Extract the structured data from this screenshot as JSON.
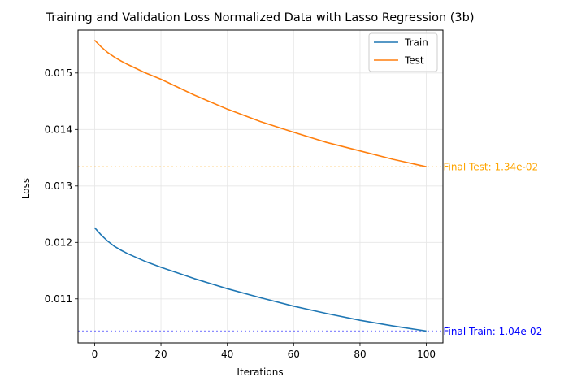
{
  "chart_data": {
    "type": "line",
    "title": "Training and Validation Loss Normalized Data with Lasso Regression (3b)",
    "xlabel": "Iterations",
    "ylabel": "Loss",
    "xlim": [
      -5,
      105
    ],
    "ylim": [
      0.01022,
      0.01576
    ],
    "xticks": [
      0,
      20,
      40,
      60,
      80,
      100
    ],
    "xtick_labels": [
      "0",
      "20",
      "40",
      "60",
      "80",
      "100"
    ],
    "yticks": [
      0.011,
      0.012,
      0.013,
      0.014,
      0.015
    ],
    "ytick_labels": [
      "0.011",
      "0.012",
      "0.013",
      "0.014",
      "0.015"
    ],
    "grid": true,
    "legend_position": "upper right",
    "series": [
      {
        "name": "Train",
        "color": "#1f77b4",
        "x": [
          0,
          2,
          4,
          6,
          8,
          10,
          15,
          20,
          30,
          40,
          50,
          60,
          70,
          80,
          90,
          100
        ],
        "y": [
          0.01226,
          0.01213,
          0.01202,
          0.01193,
          0.01186,
          0.0118,
          0.01167,
          0.01156,
          0.01136,
          0.01118,
          0.01102,
          0.01087,
          0.01074,
          0.01062,
          0.01052,
          0.01043
        ]
      },
      {
        "name": "Test",
        "color": "#ff7f0e",
        "x": [
          0,
          2,
          4,
          6,
          8,
          10,
          15,
          20,
          30,
          40,
          50,
          60,
          70,
          80,
          90,
          100
        ],
        "y": [
          0.01558,
          0.01546,
          0.01536,
          0.01528,
          0.01521,
          0.01515,
          0.01501,
          0.01489,
          0.01461,
          0.01436,
          0.01414,
          0.01395,
          0.01377,
          0.01362,
          0.01347,
          0.01334
        ]
      }
    ],
    "reference_lines": [
      {
        "series": "Train",
        "y": 0.01043,
        "label": "Final Train: 1.04e-02",
        "color": "#0000ff"
      },
      {
        "series": "Test",
        "y": 0.01334,
        "label": "Final Test: 1.34e-02",
        "color": "#ffa500"
      }
    ]
  }
}
